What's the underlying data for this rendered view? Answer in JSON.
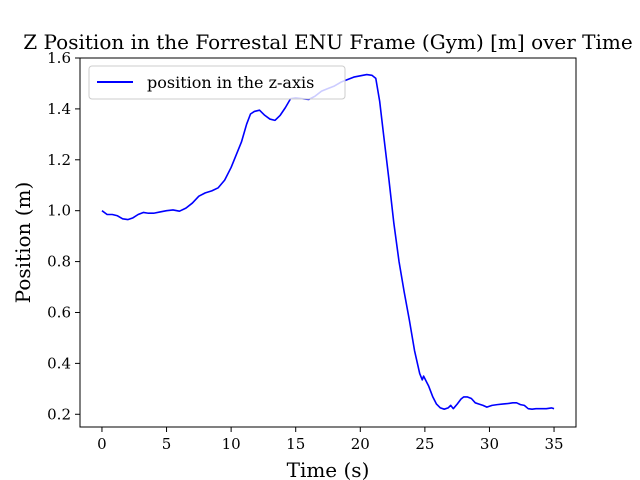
{
  "chart_data": {
    "type": "line",
    "title": "Z Position in the Forrestal ENU Frame (Gym) [m] over Time",
    "xlabel": "Time (s)",
    "ylabel": "Position (m)",
    "xlim": [
      -1.7,
      36.7
    ],
    "ylim": [
      0.15,
      1.6
    ],
    "x_ticks": [
      0,
      5,
      10,
      15,
      20,
      25,
      30,
      35
    ],
    "x_tick_labels": [
      "0",
      "5",
      "10",
      "15",
      "20",
      "25",
      "30",
      "35"
    ],
    "y_ticks": [
      0.2,
      0.4,
      0.6,
      0.8,
      1.0,
      1.2,
      1.4,
      1.6
    ],
    "y_tick_labels": [
      "0.2",
      "0.4",
      "0.6",
      "0.8",
      "1.0",
      "1.2",
      "1.4",
      "1.6"
    ],
    "grid": false,
    "legend_position": "top-left",
    "series": [
      {
        "name": "position in the z-axis",
        "color": "#0000ff",
        "x": [
          0,
          0.4,
          0.8,
          1.2,
          1.6,
          2.0,
          2.4,
          2.8,
          3.2,
          3.6,
          4.0,
          4.5,
          5.0,
          5.5,
          6.0,
          6.5,
          7.0,
          7.5,
          8.0,
          8.5,
          9.0,
          9.5,
          10.0,
          10.4,
          10.8,
          11.2,
          11.5,
          11.8,
          12.2,
          12.6,
          13.0,
          13.4,
          13.8,
          14.2,
          14.6,
          15.0,
          15.5,
          16.0,
          16.5,
          17.0,
          17.5,
          18.0,
          18.5,
          19.0,
          19.5,
          20.0,
          20.5,
          20.9,
          21.2,
          21.5,
          21.8,
          22.2,
          22.6,
          23.0,
          23.4,
          23.8,
          24.2,
          24.6,
          24.8,
          24.9,
          25.0,
          25.3,
          25.6,
          25.9,
          26.2,
          26.5,
          26.8,
          27.0,
          27.2,
          27.5,
          27.8,
          28.0,
          28.3,
          28.6,
          28.9,
          29.2,
          29.5,
          29.8,
          30.2,
          30.6,
          31.0,
          31.4,
          31.8,
          32.1,
          32.4,
          32.7,
          33.0,
          33.3,
          33.6,
          34.0,
          34.4,
          34.8,
          35.0
        ],
        "y": [
          1.0,
          0.985,
          0.985,
          0.98,
          0.968,
          0.965,
          0.972,
          0.985,
          0.993,
          0.99,
          0.99,
          0.995,
          1.0,
          1.003,
          0.998,
          1.01,
          1.03,
          1.057,
          1.07,
          1.078,
          1.09,
          1.12,
          1.17,
          1.22,
          1.27,
          1.34,
          1.38,
          1.39,
          1.395,
          1.375,
          1.36,
          1.355,
          1.375,
          1.405,
          1.44,
          1.443,
          1.44,
          1.437,
          1.45,
          1.47,
          1.48,
          1.49,
          1.505,
          1.515,
          1.525,
          1.53,
          1.535,
          1.532,
          1.52,
          1.43,
          1.3,
          1.13,
          0.95,
          0.8,
          0.68,
          0.57,
          0.45,
          0.36,
          0.335,
          0.35,
          0.34,
          0.31,
          0.27,
          0.24,
          0.225,
          0.22,
          0.225,
          0.235,
          0.222,
          0.24,
          0.26,
          0.268,
          0.268,
          0.262,
          0.245,
          0.24,
          0.235,
          0.228,
          0.235,
          0.238,
          0.24,
          0.242,
          0.245,
          0.245,
          0.238,
          0.235,
          0.222,
          0.22,
          0.222,
          0.222,
          0.222,
          0.225,
          0.222
        ]
      }
    ]
  }
}
